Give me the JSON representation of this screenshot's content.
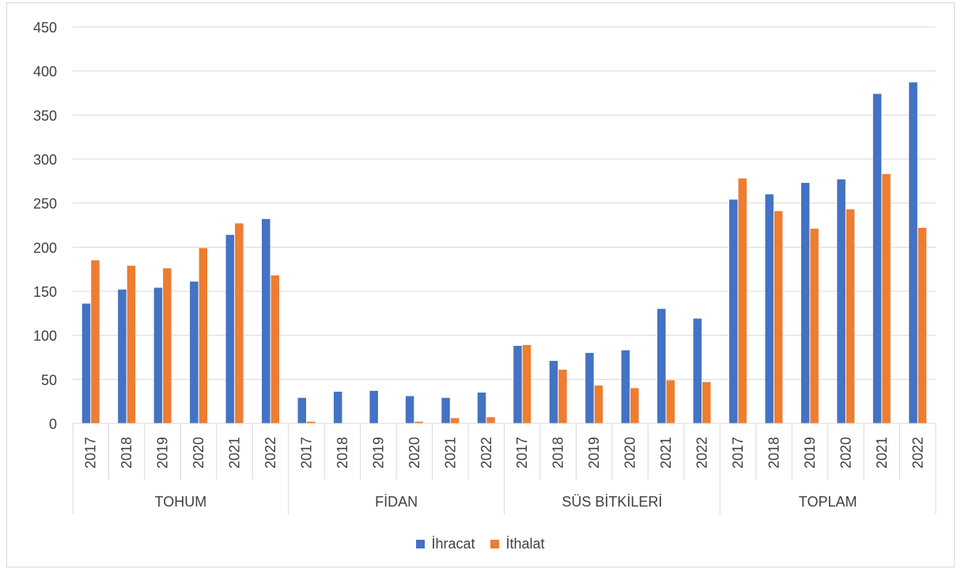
{
  "chart_data": {
    "type": "bar",
    "ylim": [
      0,
      450
    ],
    "yticks": [
      "0",
      "50",
      "100",
      "150",
      "200",
      "250",
      "300",
      "350",
      "400",
      "450"
    ],
    "groups": [
      "TOHUM",
      "FİDAN",
      "SÜS BİTKİLERİ",
      "TOPLAM"
    ],
    "years": [
      "2017",
      "2018",
      "2019",
      "2020",
      "2021",
      "2022"
    ],
    "series": [
      {
        "name": "İhracat",
        "color": "#4472c4",
        "values": [
          [
            136,
            152,
            154,
            161,
            214,
            232
          ],
          [
            29,
            36,
            37,
            31,
            29,
            35
          ],
          [
            88,
            71,
            80,
            83,
            130,
            119
          ],
          [
            254,
            260,
            273,
            277,
            374,
            387
          ]
        ]
      },
      {
        "name": "İthalat",
        "color": "#ed7d31",
        "values": [
          [
            185,
            179,
            176,
            199,
            227,
            168
          ],
          [
            2,
            0,
            0,
            2,
            6,
            7
          ],
          [
            89,
            61,
            43,
            40,
            49,
            47
          ],
          [
            278,
            241,
            221,
            243,
            283,
            222
          ]
        ]
      }
    ],
    "grid": true,
    "legend_position": "bottom"
  }
}
